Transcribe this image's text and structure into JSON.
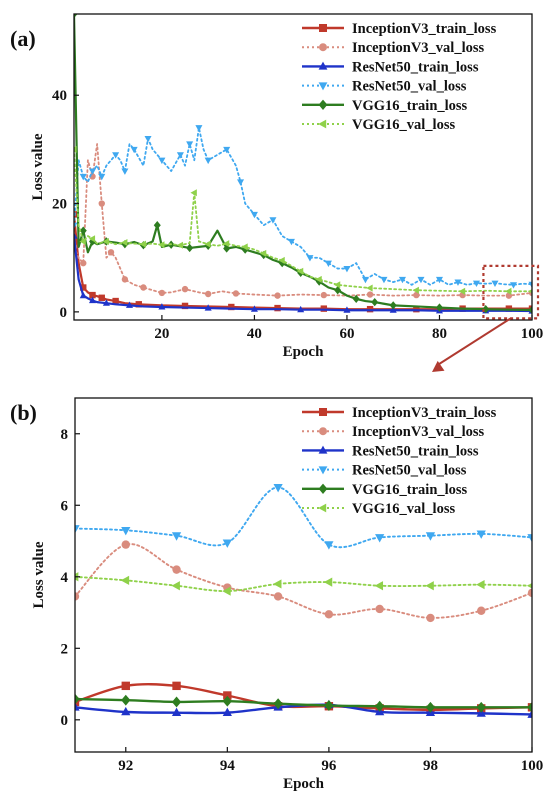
{
  "colors": {
    "InceptionV3": "#c0392b",
    "InceptionV3_val": "#d98c7e",
    "ResNet50": "#1f33c9",
    "ResNet50_val": "#3fa8f0",
    "VGG16": "#2e7d20",
    "VGG16_val": "#8fd14a",
    "zoom": "#b03a30"
  },
  "chart_data": [
    {
      "panel_label": "(a)",
      "type": "line",
      "xlabel": "Epoch",
      "ylabel": "Loss value",
      "xlim": [
        1,
        100
      ],
      "ylim": [
        -1.5,
        55
      ],
      "xticks": [
        20,
        40,
        60,
        80,
        100
      ],
      "yticks": [
        0,
        20,
        40
      ],
      "legend": "top-right",
      "series": [
        {
          "name": "InceptionV3_train_loss",
          "style": "solid",
          "marker": "square",
          "color_key": "InceptionV3",
          "x": [
            1,
            2,
            3,
            4,
            5,
            6,
            7,
            8,
            10,
            12,
            15,
            20,
            25,
            30,
            35,
            40,
            45,
            50,
            55,
            60,
            65,
            70,
            75,
            80,
            85,
            90,
            95,
            100
          ],
          "y": [
            18,
            9,
            4.5,
            3.6,
            3.1,
            2.9,
            2.6,
            2.3,
            2.0,
            1.6,
            1.4,
            1.2,
            1.1,
            1.0,
            0.9,
            0.8,
            0.7,
            0.6,
            0.6,
            0.5,
            0.5,
            0.5,
            0.5,
            0.5,
            0.6,
            0.6,
            0.6,
            0.6
          ]
        },
        {
          "name": "InceptionV3_val_loss",
          "style": "dotted",
          "marker": "circle",
          "color_key": "InceptionV3_val",
          "x": [
            1,
            2,
            3,
            4,
            5,
            6,
            7,
            8,
            9,
            10,
            12,
            14,
            16,
            18,
            20,
            22,
            25,
            28,
            30,
            33,
            36,
            40,
            45,
            50,
            55,
            60,
            65,
            70,
            75,
            80,
            85,
            90,
            95,
            100
          ],
          "y": [
            12,
            10,
            9,
            28,
            25,
            31,
            20,
            10,
            11,
            10,
            6,
            5,
            4.5,
            4,
            3.5,
            3.6,
            4.2,
            3.6,
            3.3,
            3.8,
            3.4,
            3.2,
            3.0,
            3.2,
            3.1,
            3.0,
            3.2,
            3.0,
            3.1,
            3.0,
            3.1,
            3.0,
            3.0,
            3.5
          ]
        },
        {
          "name": "ResNet50_train_loss",
          "style": "solid",
          "marker": "triangle-up",
          "color_key": "ResNet50",
          "x": [
            1,
            2,
            3,
            4,
            5,
            6,
            8,
            10,
            13,
            16,
            20,
            25,
            30,
            35,
            40,
            45,
            50,
            55,
            60,
            65,
            70,
            75,
            80,
            85,
            90,
            95,
            100
          ],
          "y": [
            14,
            6,
            3,
            2.5,
            2.1,
            1.8,
            1.6,
            1.4,
            1.2,
            1.0,
            0.9,
            0.8,
            0.7,
            0.6,
            0.5,
            0.5,
            0.4,
            0.4,
            0.3,
            0.3,
            0.3,
            0.3,
            0.2,
            0.2,
            0.2,
            0.2,
            0.15
          ]
        },
        {
          "name": "ResNet50_val_loss",
          "style": "dotted",
          "marker": "triangle-down",
          "color_key": "ResNet50_val",
          "x": [
            1,
            2,
            3,
            4,
            5,
            6,
            7,
            8,
            10,
            11,
            12,
            13,
            14,
            16,
            17,
            18,
            20,
            22,
            24,
            25,
            26,
            27,
            28,
            29,
            30,
            32,
            34,
            36,
            37,
            38,
            40,
            42,
            44,
            46,
            48,
            50,
            52,
            54,
            56,
            58,
            60,
            62,
            64,
            66,
            68,
            70,
            72,
            74,
            76,
            78,
            80,
            82,
            84,
            86,
            88,
            90,
            92,
            94,
            96,
            98,
            100
          ],
          "y": [
            16,
            28,
            25,
            24,
            26,
            27,
            25,
            27,
            29,
            28,
            26,
            31,
            30,
            27,
            32,
            30,
            28,
            26,
            29,
            27,
            31,
            28,
            34,
            30,
            28,
            29,
            30,
            27,
            24,
            20,
            18,
            16,
            17,
            14,
            13,
            12,
            10,
            10,
            9,
            8,
            8,
            9,
            6,
            7,
            6,
            5.5,
            6,
            5,
            6,
            5,
            6,
            5,
            5.5,
            5,
            5.3,
            5.2,
            5.3,
            5.1,
            5,
            5.2,
            5.1
          ]
        },
        {
          "name": "VGG16_train_loss",
          "style": "solid",
          "marker": "diamond",
          "color_key": "VGG16",
          "x": [
            1,
            2,
            3,
            4,
            5,
            6,
            8,
            10,
            12,
            14,
            16,
            18,
            19,
            20,
            22,
            24,
            26,
            28,
            30,
            32,
            34,
            36,
            38,
            40,
            42,
            44,
            46,
            48,
            50,
            52,
            54,
            56,
            58,
            60,
            62,
            64,
            66,
            68,
            70,
            75,
            80,
            85,
            90,
            95,
            100
          ],
          "y": [
            55,
            12,
            15,
            11,
            13,
            12.5,
            13,
            12.8,
            12.5,
            12.9,
            12.3,
            13,
            16,
            12,
            12.4,
            12.1,
            11.8,
            12,
            12.2,
            15,
            11.7,
            12,
            11.5,
            11,
            10.5,
            9.6,
            9,
            8.2,
            7.2,
            6.5,
            5.6,
            4.5,
            4,
            3,
            2.4,
            2,
            1.8,
            1.5,
            1.2,
            1,
            0.8,
            0.6,
            0.5,
            0.4,
            0.35
          ]
        },
        {
          "name": "VGG16_val_loss",
          "style": "dotted",
          "marker": "triangle-left",
          "color_key": "VGG16_val",
          "x": [
            1,
            2,
            3,
            4,
            5,
            6,
            8,
            10,
            12,
            14,
            16,
            18,
            20,
            22,
            24,
            26,
            27,
            28,
            30,
            32,
            34,
            36,
            38,
            40,
            42,
            44,
            46,
            48,
            50,
            52,
            54,
            56,
            58,
            60,
            65,
            70,
            75,
            80,
            85,
            90,
            95,
            100
          ],
          "y": [
            30,
            16,
            13,
            14,
            13.5,
            12.6,
            13,
            12.5,
            12.8,
            12.6,
            12.5,
            12.6,
            12.4,
            12.5,
            12.3,
            12.7,
            22,
            13,
            12.5,
            12.2,
            12.6,
            12.2,
            12,
            11.5,
            10.8,
            10,
            9.5,
            8.5,
            7.5,
            6.5,
            6,
            5.5,
            5,
            4.8,
            4.4,
            4.2,
            4,
            3.9,
            3.8,
            3.9,
            3.8,
            3.8
          ]
        }
      ]
    },
    {
      "panel_label": "(b)",
      "type": "line",
      "xlabel": "Epoch",
      "ylabel": "Loss value",
      "xlim": [
        91,
        100
      ],
      "ylim": [
        -0.9,
        9.0
      ],
      "xticks": [
        92,
        94,
        96,
        98,
        100
      ],
      "yticks": [
        0,
        2,
        4,
        6,
        8
      ],
      "legend": "top-right",
      "series": [
        {
          "name": "InceptionV3_train_loss",
          "style": "solid",
          "marker": "square",
          "color_key": "InceptionV3",
          "x": [
            91,
            92,
            93,
            94,
            95,
            96,
            97,
            98,
            99,
            100
          ],
          "y": [
            0.5,
            0.95,
            0.95,
            0.68,
            0.38,
            0.38,
            0.32,
            0.28,
            0.32,
            0.35
          ]
        },
        {
          "name": "InceptionV3_val_loss",
          "style": "dotted",
          "marker": "circle",
          "color_key": "InceptionV3_val",
          "x": [
            91,
            92,
            93,
            94,
            95,
            96,
            97,
            98,
            99,
            100
          ],
          "y": [
            3.45,
            4.9,
            4.2,
            3.7,
            3.45,
            2.95,
            3.1,
            2.85,
            3.05,
            3.55
          ]
        },
        {
          "name": "ResNet50_train_loss",
          "style": "solid",
          "marker": "triangle-up",
          "color_key": "ResNet50",
          "x": [
            91,
            92,
            93,
            94,
            95,
            96,
            97,
            98,
            99,
            100
          ],
          "y": [
            0.35,
            0.22,
            0.2,
            0.2,
            0.35,
            0.42,
            0.22,
            0.2,
            0.18,
            0.15
          ]
        },
        {
          "name": "ResNet50_val_loss",
          "style": "dotted",
          "marker": "triangle-down",
          "color_key": "ResNet50_val",
          "x": [
            91,
            92,
            93,
            94,
            95,
            96,
            97,
            98,
            99,
            100
          ],
          "y": [
            5.35,
            5.3,
            5.15,
            4.95,
            6.5,
            4.9,
            5.1,
            5.15,
            5.2,
            5.1
          ]
        },
        {
          "name": "VGG16_train_loss",
          "style": "solid",
          "marker": "diamond",
          "color_key": "VGG16",
          "x": [
            91,
            92,
            93,
            94,
            95,
            96,
            97,
            98,
            99,
            100
          ],
          "y": [
            0.58,
            0.55,
            0.5,
            0.52,
            0.45,
            0.4,
            0.38,
            0.35,
            0.35,
            0.35
          ]
        },
        {
          "name": "VGG16_val_loss",
          "style": "dotted",
          "marker": "triangle-left",
          "color_key": "VGG16_val",
          "x": [
            91,
            92,
            93,
            94,
            95,
            96,
            97,
            98,
            99,
            100
          ],
          "y": [
            4.0,
            3.9,
            3.75,
            3.6,
            3.8,
            3.85,
            3.75,
            3.75,
            3.78,
            3.75
          ]
        }
      ]
    }
  ]
}
